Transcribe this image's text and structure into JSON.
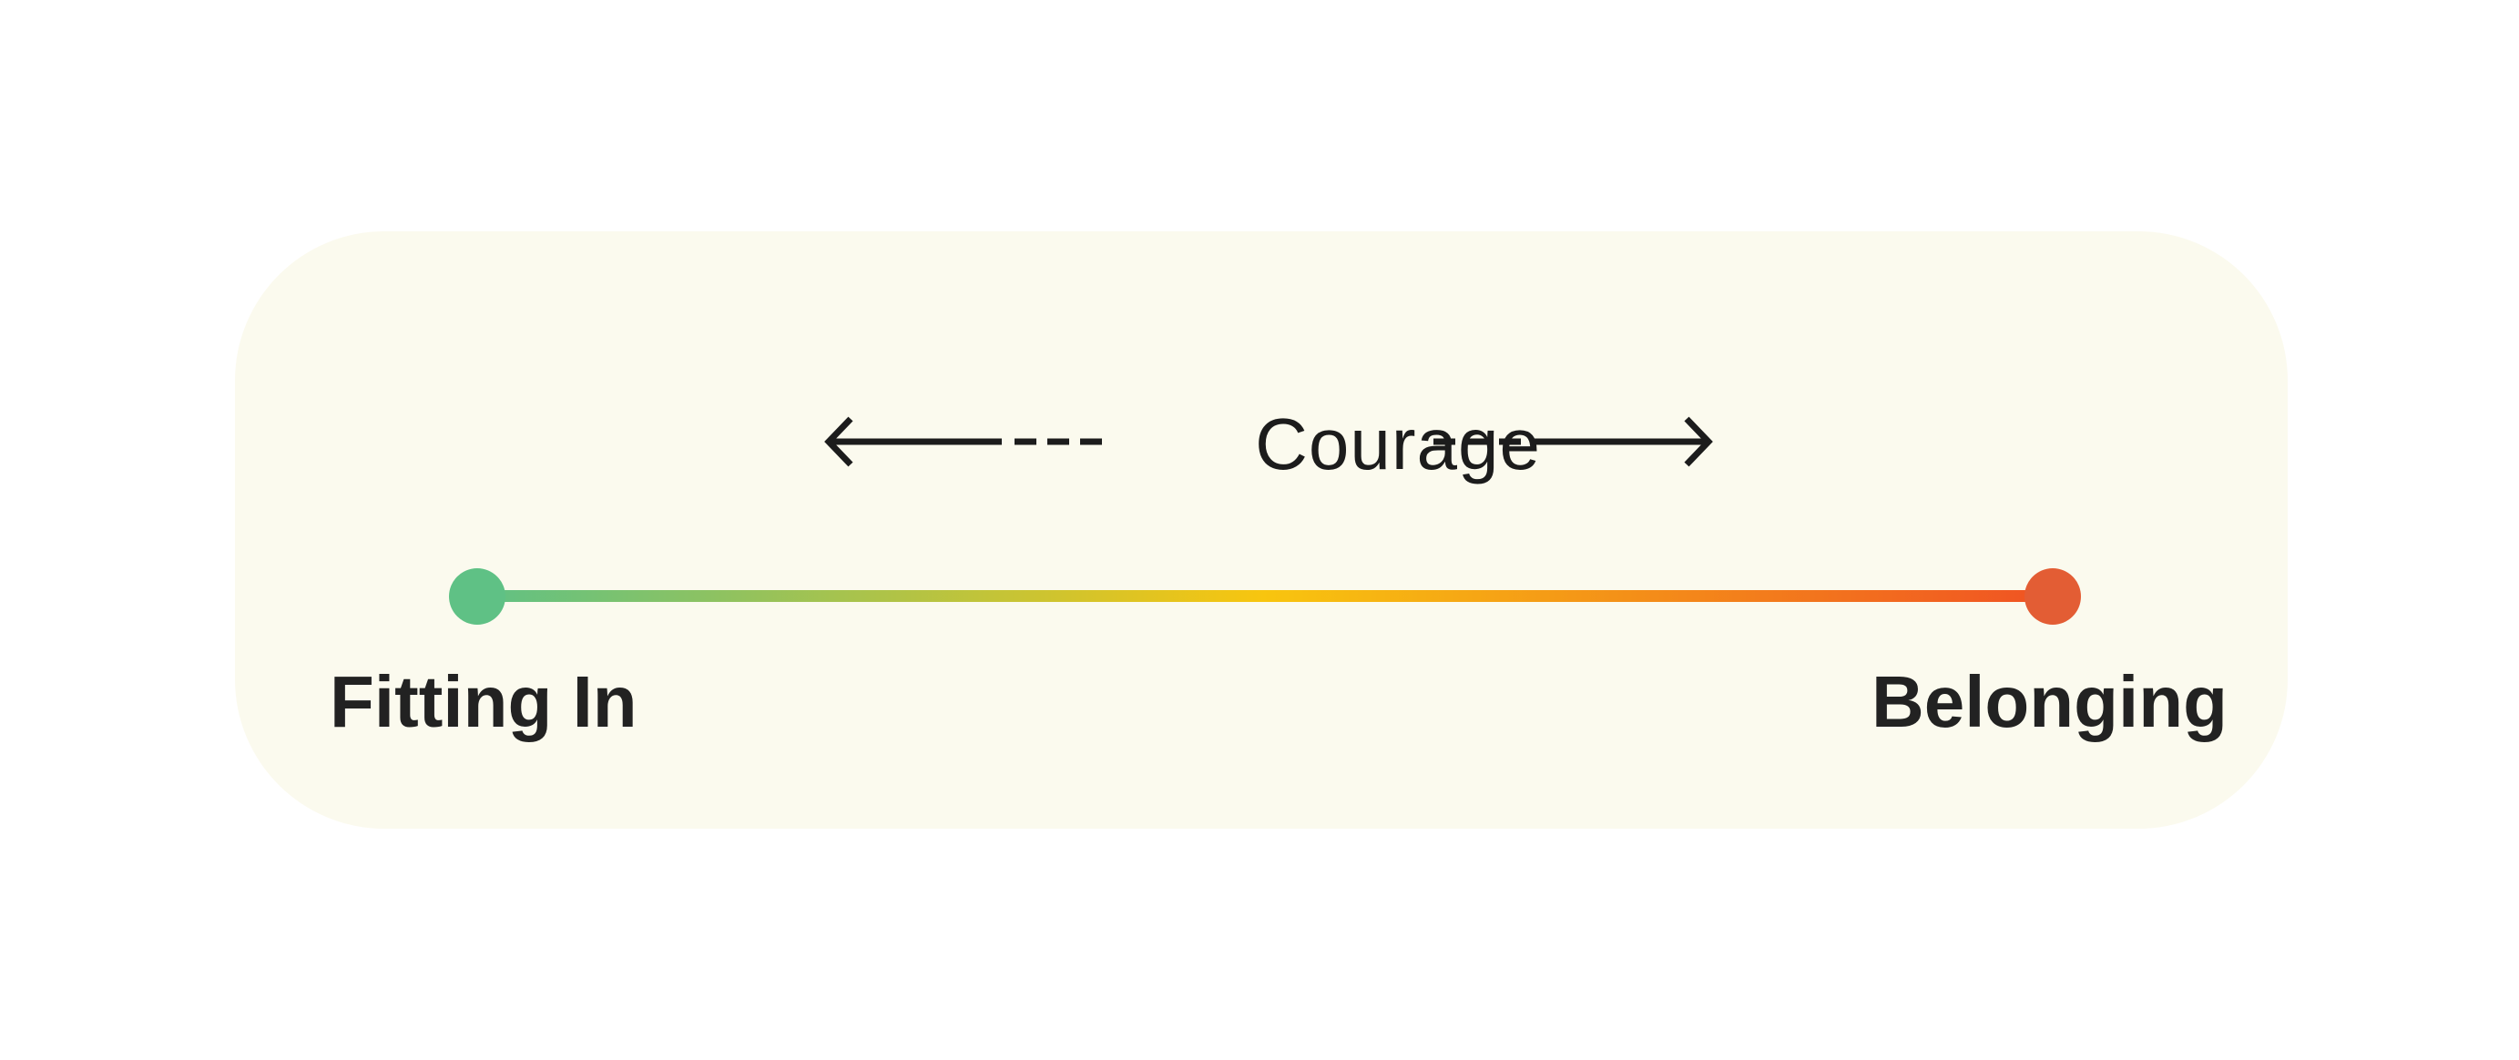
{
  "diagram": {
    "axis_label": "Courage",
    "left_end": {
      "label": "Fitting In",
      "color": "#5fc185"
    },
    "right_end": {
      "label": "Belonging",
      "color": "#e35d34"
    },
    "gradient_colors": [
      "#5fc185",
      "#f8c50f",
      "#f05223"
    ],
    "card_color": "#fbfaee",
    "ink_color": "#1c1c1c"
  }
}
